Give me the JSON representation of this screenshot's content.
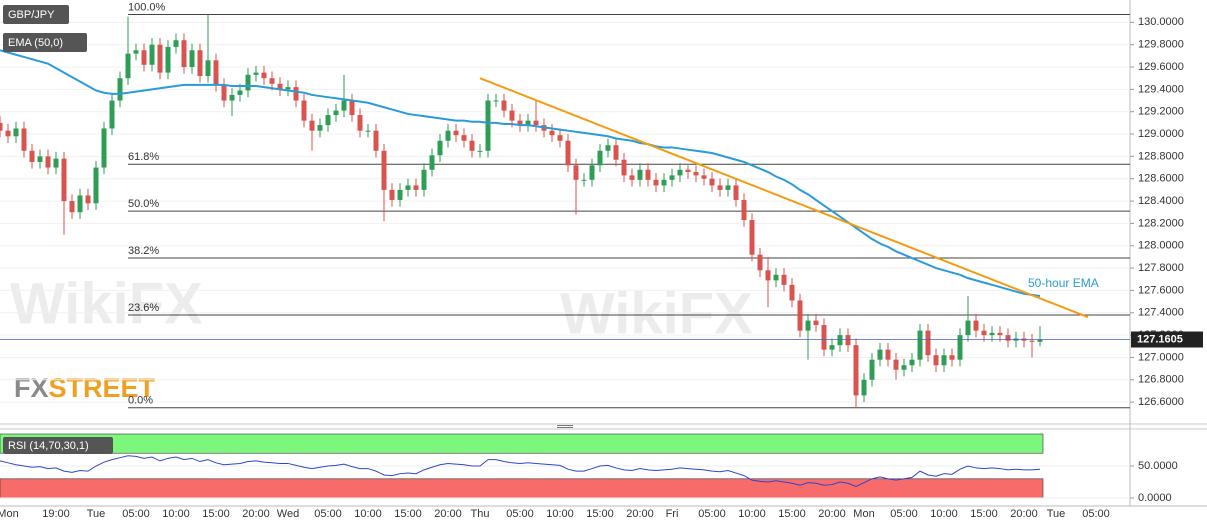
{
  "chart_data": {
    "type": "candlestick",
    "title": "GBP/JPY",
    "watermark": "WikiFX",
    "logo": [
      "FX",
      "STREET"
    ],
    "categories": [
      null,
      "Mon",
      null,
      null,
      null,
      null,
      null,
      "19:00",
      null,
      null,
      null,
      null,
      "Tue",
      null,
      null,
      null,
      null,
      "05:00",
      null,
      null,
      null,
      null,
      "10:00",
      null,
      null,
      null,
      null,
      "15:00",
      null,
      null,
      null,
      null,
      "20:00",
      null,
      null,
      null,
      "Wed",
      null,
      null,
      null,
      null,
      "05:00",
      null,
      null,
      null,
      null,
      "10:00",
      null,
      null,
      null,
      null,
      "15:00",
      null,
      null,
      null,
      null,
      "20:00",
      null,
      null,
      null,
      "Thu",
      null,
      null,
      null,
      null,
      "05:00",
      null,
      null,
      null,
      null,
      "10:00",
      null,
      null,
      null,
      null,
      "15:00",
      null,
      null,
      null,
      null,
      "20:00",
      null,
      null,
      null,
      "Fri",
      null,
      null,
      null,
      null,
      "05:00",
      null,
      null,
      null,
      null,
      "10:00",
      null,
      null,
      null,
      null,
      "15:00",
      null,
      null,
      null,
      null,
      "20:00",
      null,
      null,
      null,
      "Mon",
      null,
      null,
      null,
      null,
      "05:00",
      null,
      null,
      null,
      null,
      "10:00",
      null,
      null,
      null,
      null,
      "15:00",
      null,
      null,
      null,
      null,
      "20:00",
      null,
      null,
      null,
      "Tue",
      null,
      null,
      null,
      null,
      "05:00"
    ],
    "series": [
      {
        "name": "GBP/JPY",
        "type": "candlestick",
        "up_color": "#2e9e57",
        "down_color": "#d9534f",
        "open": [
          129.1,
          129.03,
          128.98,
          129.05,
          128.85,
          128.75,
          128.8,
          128.7,
          128.78,
          128.4,
          128.3,
          128.45,
          128.38,
          128.7,
          129.05,
          129.3,
          129.5,
          129.72,
          129.75,
          129.62,
          129.8,
          129.55,
          129.78,
          129.84,
          129.6,
          129.75,
          129.52,
          129.66,
          129.44,
          129.3,
          129.35,
          129.39,
          129.53,
          129.55,
          129.5,
          129.45,
          129.4,
          129.42,
          129.3,
          129.12,
          129.03,
          129.08,
          129.17,
          129.21,
          129.3,
          129.17,
          129.03,
          129.03,
          128.85,
          128.5,
          128.41,
          128.5,
          128.54,
          128.5,
          128.68,
          128.81,
          128.94,
          129.03,
          128.99,
          128.94,
          128.85,
          128.85,
          129.3,
          129.3,
          129.21,
          129.12,
          129.08,
          129.12,
          129.08,
          129.03,
          128.99,
          128.94,
          128.72,
          128.59,
          128.59,
          128.72,
          128.85,
          128.9,
          128.77,
          128.63,
          128.59,
          128.68,
          128.59,
          128.54,
          128.59,
          128.63,
          128.68,
          128.66,
          128.63,
          128.6,
          128.54,
          128.5,
          128.54,
          128.41,
          128.23,
          127.92,
          127.78,
          127.69,
          127.74,
          127.65,
          127.51,
          127.24,
          127.33,
          127.29,
          127.07,
          127.11,
          127.2,
          127.11,
          126.66,
          126.8,
          126.98,
          127.07,
          126.98,
          126.89,
          126.93,
          126.98,
          127.24,
          127.02,
          126.93,
          127.02,
          126.98,
          127.2,
          127.33,
          127.24,
          127.2,
          127.22,
          127.2,
          127.15,
          127.17,
          127.15,
          127.14,
          null,
          null,
          null,
          null,
          null,
          null,
          null
        ],
        "high": [
          129.16,
          129.09,
          129.11,
          129.11,
          128.91,
          128.86,
          128.86,
          128.84,
          128.84,
          128.46,
          128.51,
          128.51,
          128.76,
          129.11,
          129.36,
          129.56,
          130.05,
          129.81,
          129.81,
          129.86,
          129.86,
          129.84,
          129.9,
          129.9,
          129.81,
          129.81,
          130.07,
          129.72,
          129.5,
          129.41,
          129.45,
          129.59,
          129.61,
          129.61,
          129.56,
          129.51,
          129.48,
          129.48,
          129.36,
          129.18,
          129.14,
          129.23,
          129.27,
          129.53,
          129.36,
          129.23,
          129.09,
          129.09,
          128.91,
          128.56,
          128.56,
          128.6,
          128.6,
          128.74,
          128.87,
          129.0,
          129.09,
          129.09,
          129.05,
          129.0,
          128.91,
          129.36,
          129.36,
          129.36,
          129.27,
          129.18,
          129.18,
          129.3,
          129.14,
          129.09,
          129.05,
          129.0,
          128.78,
          128.65,
          128.78,
          128.91,
          128.96,
          128.96,
          128.83,
          128.69,
          128.74,
          128.74,
          128.65,
          128.65,
          128.69,
          128.74,
          128.72,
          128.72,
          128.69,
          128.66,
          128.6,
          128.6,
          128.6,
          128.47,
          128.29,
          127.98,
          127.9,
          127.8,
          127.8,
          127.71,
          127.57,
          127.39,
          127.39,
          127.35,
          127.17,
          127.26,
          127.26,
          127.17,
          126.86,
          127.04,
          127.13,
          127.13,
          127.04,
          126.99,
          127.04,
          127.3,
          127.3,
          127.08,
          127.08,
          127.08,
          127.26,
          127.55,
          127.39,
          127.3,
          127.28,
          127.28,
          127.26,
          127.23,
          127.23,
          127.21,
          127.28,
          null,
          null,
          null,
          null,
          null,
          null,
          null
        ],
        "low": [
          128.97,
          128.92,
          128.92,
          128.79,
          128.69,
          128.69,
          128.64,
          128.64,
          128.1,
          128.24,
          128.24,
          128.32,
          128.32,
          128.64,
          128.99,
          129.24,
          129.44,
          129.66,
          129.56,
          129.56,
          129.49,
          129.49,
          129.72,
          129.54,
          129.54,
          129.46,
          129.46,
          129.38,
          129.24,
          129.16,
          129.29,
          129.33,
          129.47,
          129.44,
          129.39,
          129.34,
          129.34,
          129.24,
          129.06,
          128.85,
          128.97,
          129.02,
          129.11,
          129.15,
          129.11,
          128.97,
          128.97,
          128.79,
          128.22,
          128.35,
          128.35,
          128.44,
          128.44,
          128.44,
          128.62,
          128.75,
          128.88,
          128.93,
          128.88,
          128.79,
          128.79,
          128.79,
          129.24,
          129.15,
          129.06,
          129.02,
          129.02,
          129.02,
          128.97,
          128.93,
          128.88,
          128.66,
          128.28,
          128.53,
          128.53,
          128.66,
          128.79,
          128.71,
          128.57,
          128.53,
          128.53,
          128.53,
          128.48,
          128.48,
          128.53,
          128.57,
          128.6,
          128.57,
          128.54,
          128.48,
          128.44,
          128.44,
          128.35,
          128.17,
          127.86,
          127.72,
          127.45,
          127.63,
          127.59,
          127.45,
          127.18,
          126.98,
          127.23,
          127.01,
          127.01,
          127.05,
          127.05,
          126.55,
          126.6,
          126.74,
          126.92,
          126.92,
          126.8,
          126.83,
          126.87,
          126.92,
          126.96,
          126.87,
          126.87,
          126.92,
          126.92,
          127.14,
          127.18,
          127.14,
          127.14,
          127.14,
          127.09,
          127.09,
          127.09,
          127.0,
          127.1,
          null,
          null,
          null,
          null,
          null,
          null,
          null
        ],
        "close": [
          129.03,
          128.98,
          129.05,
          128.85,
          128.75,
          128.8,
          128.7,
          128.78,
          128.4,
          128.3,
          128.45,
          128.38,
          128.7,
          129.05,
          129.3,
          129.5,
          129.72,
          129.75,
          129.62,
          129.8,
          129.55,
          129.78,
          129.84,
          129.6,
          129.75,
          129.52,
          129.66,
          129.44,
          129.3,
          129.35,
          129.39,
          129.53,
          129.55,
          129.5,
          129.45,
          129.4,
          129.42,
          129.3,
          129.12,
          129.03,
          129.08,
          129.17,
          129.21,
          129.3,
          129.17,
          129.03,
          129.03,
          128.85,
          128.5,
          128.41,
          128.5,
          128.54,
          128.5,
          128.68,
          128.81,
          128.94,
          129.03,
          128.99,
          128.94,
          128.85,
          128.85,
          129.3,
          129.3,
          129.21,
          129.12,
          129.08,
          129.12,
          129.08,
          129.03,
          128.99,
          128.94,
          128.72,
          128.59,
          128.59,
          128.72,
          128.85,
          128.9,
          128.77,
          128.63,
          128.59,
          128.68,
          128.59,
          128.54,
          128.59,
          128.63,
          128.68,
          128.66,
          128.63,
          128.6,
          128.54,
          128.5,
          128.54,
          128.41,
          128.23,
          127.92,
          127.78,
          127.69,
          127.74,
          127.65,
          127.51,
          127.24,
          127.33,
          127.29,
          127.07,
          127.11,
          127.2,
          127.11,
          126.66,
          126.8,
          126.98,
          127.07,
          126.98,
          126.89,
          126.93,
          126.98,
          127.24,
          127.02,
          126.93,
          127.02,
          126.98,
          127.2,
          127.33,
          127.24,
          127.2,
          127.22,
          127.2,
          127.15,
          127.17,
          127.15,
          127.14,
          127.16,
          null,
          null,
          null,
          null,
          null,
          null,
          null
        ]
      },
      {
        "name": "EMA (50,0)",
        "type": "line",
        "color": "#2a9bd8",
        "values": [
          129.75,
          129.73,
          129.71,
          129.69,
          129.67,
          129.65,
          129.63,
          129.59,
          129.55,
          129.51,
          129.47,
          129.43,
          129.39,
          129.37,
          129.36,
          129.36,
          129.37,
          129.38,
          129.39,
          129.4,
          129.41,
          129.42,
          129.43,
          129.44,
          129.44,
          129.44,
          129.44,
          129.44,
          129.44,
          129.43,
          129.43,
          129.43,
          129.43,
          129.42,
          129.41,
          129.4,
          129.39,
          129.38,
          129.37,
          129.35,
          129.34,
          129.33,
          129.32,
          129.31,
          129.3,
          129.29,
          129.28,
          129.26,
          129.24,
          129.22,
          129.2,
          129.18,
          129.17,
          129.16,
          129.15,
          129.14,
          129.13,
          129.12,
          129.12,
          129.11,
          129.11,
          129.1,
          129.1,
          129.09,
          129.09,
          129.08,
          129.08,
          129.07,
          129.06,
          129.05,
          129.04,
          129.03,
          129.02,
          129.01,
          129.0,
          128.99,
          128.98,
          128.96,
          128.95,
          128.94,
          128.92,
          128.91,
          128.89,
          128.88,
          128.88,
          128.87,
          128.86,
          128.85,
          128.84,
          128.83,
          128.81,
          128.79,
          128.77,
          128.75,
          128.72,
          128.69,
          128.66,
          128.62,
          128.59,
          128.55,
          128.5,
          128.46,
          128.41,
          128.36,
          128.31,
          128.26,
          128.21,
          128.16,
          128.11,
          128.06,
          128.02,
          127.99,
          127.95,
          127.92,
          127.89,
          127.86,
          127.83,
          127.8,
          127.78,
          127.76,
          127.74,
          127.71,
          127.69,
          127.67,
          127.65,
          127.63,
          127.61,
          127.59,
          127.57,
          127.56,
          127.55,
          null,
          null,
          null,
          null,
          null,
          null,
          null
        ]
      }
    ],
    "trendline": {
      "color": "#f39c12",
      "x": [
        60,
        136
      ],
      "values": [
        129.5,
        127.36
      ]
    },
    "annotation": {
      "text": "50-hour EMA",
      "color": "#2a9bd8"
    },
    "fib_levels": [
      {
        "label": "100.0%",
        "value": 130.07
      },
      {
        "label": "61.8%",
        "value": 128.73
      },
      {
        "label": "50.0%",
        "value": 128.31
      },
      {
        "label": "38.2%",
        "value": 127.89
      },
      {
        "label": "23.6%",
        "value": 127.38
      },
      {
        "label": "0.0%",
        "value": 126.55
      }
    ],
    "last_price": 127.1605,
    "ylim": [
      126.44,
      130.2
    ],
    "yticks": [
      {
        "value": 126.6,
        "label": "126.6000"
      },
      {
        "value": 126.8,
        "label": "126.8000"
      },
      {
        "value": 127.0,
        "label": "127.0000"
      },
      {
        "value": 127.2,
        "label": "127.2000"
      },
      {
        "value": 127.4,
        "label": "127.4000"
      },
      {
        "value": 127.6,
        "label": "127.6000"
      },
      {
        "value": 127.8,
        "label": "127.8000"
      },
      {
        "value": 128.0,
        "label": "128.0000"
      },
      {
        "value": 128.2,
        "label": "128.2000"
      },
      {
        "value": 128.4,
        "label": "128.4000"
      },
      {
        "value": 128.6,
        "label": "128.6000"
      },
      {
        "value": 128.8,
        "label": "128.8000"
      },
      {
        "value": 129.0,
        "label": "129.0000"
      },
      {
        "value": 129.2,
        "label": "129.2000"
      },
      {
        "value": 129.4,
        "label": "129.4000"
      },
      {
        "value": 129.6,
        "label": "129.6000"
      },
      {
        "value": 129.8,
        "label": "129.8000"
      },
      {
        "value": 130.0,
        "label": "130.0000"
      }
    ],
    "grid": true,
    "rsi": {
      "name": "RSI (14,70,30,1)",
      "color": "#3344cc",
      "values": [
        58,
        55,
        52,
        50,
        48,
        49,
        46,
        47,
        42,
        40,
        43,
        42,
        50,
        56,
        60,
        63,
        66,
        65,
        62,
        64,
        58,
        62,
        64,
        60,
        62,
        57,
        60,
        55,
        52,
        53,
        54,
        57,
        58,
        56,
        55,
        54,
        54,
        51,
        48,
        46,
        48,
        50,
        51,
        53,
        49,
        46,
        46,
        42,
        36,
        35,
        38,
        39,
        38,
        44,
        48,
        52,
        54,
        53,
        52,
        50,
        50,
        60,
        60,
        57,
        55,
        54,
        55,
        54,
        53,
        52,
        51,
        45,
        42,
        42,
        46,
        50,
        51,
        47,
        44,
        43,
        46,
        44,
        43,
        44,
        45,
        47,
        46,
        45,
        44,
        42,
        41,
        43,
        39,
        35,
        28,
        26,
        25,
        27,
        25,
        23,
        20,
        24,
        23,
        20,
        21,
        25,
        23,
        18,
        24,
        30,
        33,
        30,
        28,
        30,
        32,
        42,
        36,
        34,
        38,
        37,
        45,
        50,
        47,
        46,
        47,
        46,
        44,
        45,
        44,
        44,
        45,
        null,
        null,
        null,
        null,
        null,
        null,
        null
      ],
      "bands": [
        {
          "from": 70,
          "to": 100,
          "color": "#7cf77c"
        },
        {
          "from": 0,
          "to": 30,
          "color": "#f86b6b"
        }
      ],
      "ylim": [
        -12.5,
        109.4
      ],
      "yticks": [
        {
          "value": 50,
          "label": "50.0000"
        },
        {
          "value": 0,
          "label": "0.0000"
        }
      ]
    }
  }
}
